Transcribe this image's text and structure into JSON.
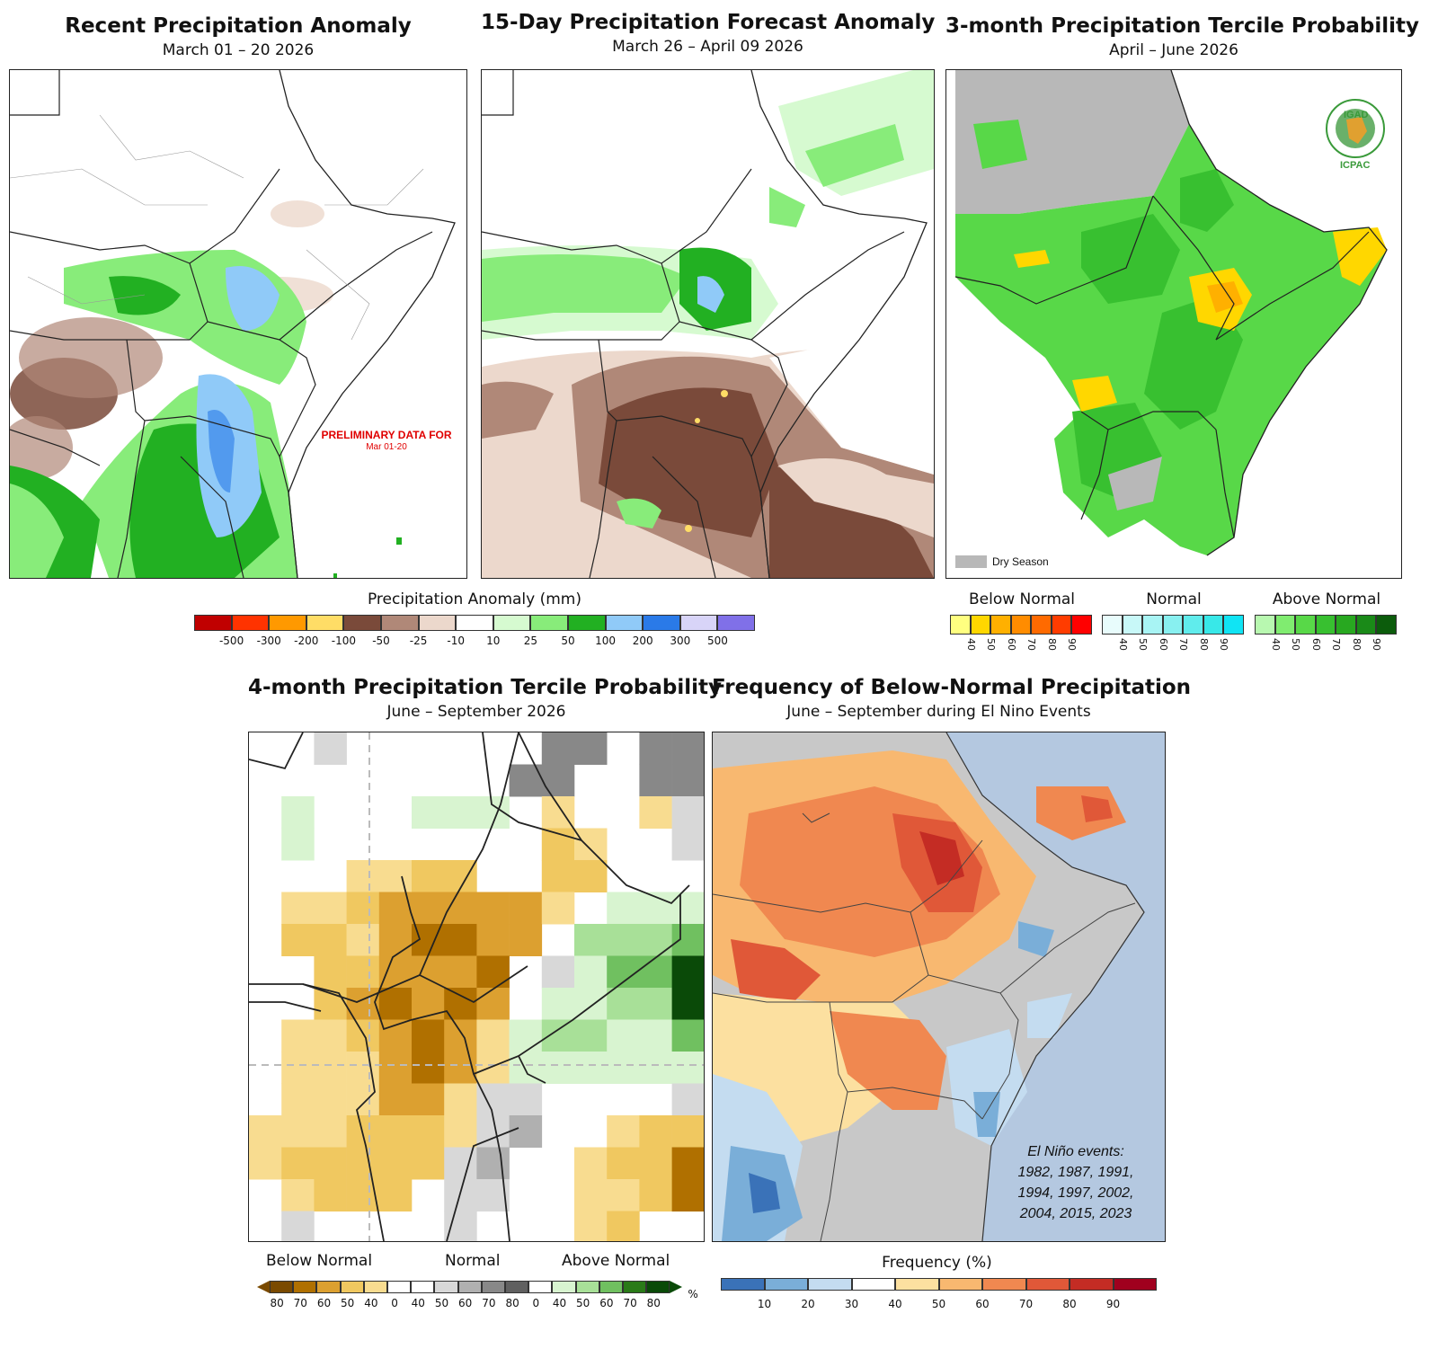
{
  "panels": {
    "recent": {
      "title": "Recent Precipitation Anomaly",
      "subtitle": "March 01 – 20 2026",
      "note_main": "PRELIMINARY DATA FOR",
      "note_sub": "Mar 01-20"
    },
    "forecast15": {
      "title": "15-Day Precipitation Forecast Anomaly",
      "subtitle": "March 26 – April 09 2026"
    },
    "tercile3": {
      "title": "3-month Precipitation Tercile Probability",
      "subtitle": "April – June 2026",
      "dry_season_label": "Dry Season",
      "logo_top": "IGAD",
      "logo_bottom": "ICPAC"
    },
    "tercile4": {
      "title": "4-month Precipitation Tercile Probability",
      "subtitle": "June – September 2026"
    },
    "frequency": {
      "title": "Frequency of Below-Normal Precipitation",
      "subtitle": "June – September during El Nino Events",
      "elnino_lines": [
        "El Niño events:",
        "1982, 1987, 1991,",
        "1994, 1997, 2002,",
        "2004, 2015, 2023"
      ]
    }
  },
  "legends": {
    "anomaly": {
      "title": "Precipitation Anomaly (mm)",
      "colors": [
        "#c00000",
        "#ff3300",
        "#ff9900",
        "#ffdd66",
        "#7a4a3a",
        "#b08878",
        "#ecd8cc",
        "#ffffff",
        "#d6fad0",
        "#88ec7a",
        "#22b022",
        "#90caf8",
        "#2a7ae8",
        "#d8d4f8",
        "#8070e8"
      ],
      "ticks": [
        "-500",
        "-300",
        "-200",
        "-100",
        "-50",
        "-25",
        "-10",
        "10",
        "25",
        "50",
        "100",
        "200",
        "300",
        "500"
      ]
    },
    "tercile3": {
      "groups": [
        {
          "label": "Below Normal",
          "colors": [
            "#ffff80",
            "#ffd700",
            "#ffb000",
            "#ff8c00",
            "#ff6a00",
            "#ff3c00",
            "#ff0000"
          ],
          "ticks": [
            "40",
            "50",
            "60",
            "70",
            "80",
            "90"
          ]
        },
        {
          "label": "Normal",
          "colors": [
            "#e8fcfc",
            "#c8f8f8",
            "#a8f4f4",
            "#88f0f0",
            "#60ecec",
            "#38e8e8",
            "#10e4f4"
          ],
          "ticks": [
            "40",
            "50",
            "60",
            "70",
            "80",
            "90"
          ]
        },
        {
          "label": "Above Normal",
          "colors": [
            "#b8f8b0",
            "#80ec70",
            "#58d848",
            "#38c030",
            "#28a820",
            "#1a8a18",
            "#0c5c0c"
          ],
          "ticks": [
            "40",
            "50",
            "60",
            "70",
            "80",
            "90"
          ]
        }
      ]
    },
    "tercile4": {
      "labels": [
        "Below Normal",
        "Normal",
        "Above Normal"
      ],
      "colors": [
        "#7a4a00",
        "#b07000",
        "#dca030",
        "#f0c860",
        "#f8dc90",
        "#ffffff",
        "#ffffff",
        "#d8d8d8",
        "#b0b0b0",
        "#888888",
        "#606060",
        "#ffffff",
        "#d8f4d0",
        "#a8e098",
        "#70c060",
        "#2a7a18",
        "#0a4a08"
      ],
      "ticks": [
        "80",
        "70",
        "60",
        "50",
        "40",
        "0",
        "40",
        "50",
        "60",
        "70",
        "80",
        "0",
        "40",
        "50",
        "60",
        "70",
        "80"
      ],
      "unit": "%"
    },
    "frequency": {
      "title": "Frequency (%)",
      "colors": [
        "#3a72b8",
        "#7aaed8",
        "#c4dcf0",
        "#ffffff",
        "#fce0a0",
        "#f8b870",
        "#f08850",
        "#e05838",
        "#c42c24",
        "#a0001e"
      ],
      "ticks": [
        "10",
        "20",
        "30",
        "40",
        "50",
        "60",
        "70",
        "80",
        "90"
      ]
    }
  }
}
